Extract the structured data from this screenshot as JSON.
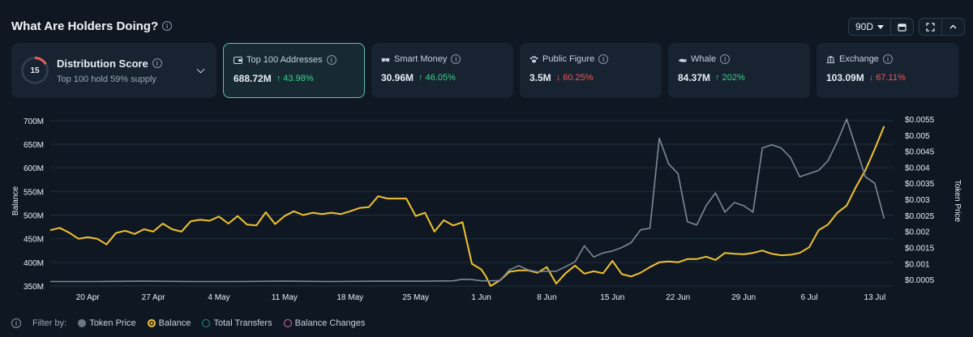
{
  "header": {
    "title": "What Are Holders Doing?",
    "period": "90D"
  },
  "distribution": {
    "score": "15",
    "title": "Distribution Score",
    "subtitle": "Top 100 hold 59% supply"
  },
  "stats": [
    {
      "label": "Top 100 Addresses",
      "icon": "wallet-icon",
      "value": "688.72M",
      "change": "↑ 43.98%",
      "direction": "up",
      "active": true
    },
    {
      "label": "Smart Money",
      "icon": "glasses-icon",
      "value": "30.96M",
      "change": "↑ 46.05%",
      "direction": "up",
      "active": false
    },
    {
      "label": "Public Figure",
      "icon": "paw-icon",
      "value": "3.5M",
      "change": "↓ 60.25%",
      "direction": "down",
      "active": false
    },
    {
      "label": "Whale",
      "icon": "whale-icon",
      "value": "84.37M",
      "change": "↑ 202%",
      "direction": "up",
      "active": false
    },
    {
      "label": "Exchange",
      "icon": "bank-icon",
      "value": "103.09M",
      "change": "↓ 67.11%",
      "direction": "down",
      "active": false
    }
  ],
  "legend": {
    "filter_label": "Filter by:",
    "items": [
      {
        "label": "Token Price",
        "color": "#6b7785",
        "style": "filled"
      },
      {
        "label": "Balance",
        "color": "#f2c230",
        "style": "ring"
      },
      {
        "label": "Total Transfers",
        "color": "#1f8f8a",
        "style": "ring"
      },
      {
        "label": "Balance Changes",
        "color": "#d86aa8",
        "style": "ring"
      }
    ]
  },
  "colors": {
    "balance": "#f2c230",
    "price": "#7d8998",
    "grid": "#1f2f3d",
    "accent": "#5dc2b0"
  },
  "chart_data": {
    "type": "line",
    "xlabel": "",
    "ylabel": "Balance",
    "y2label": "Token Price",
    "ylim": [
      350,
      710
    ],
    "y_ticks": [
      "350M",
      "400M",
      "450M",
      "500M",
      "550M",
      "600M",
      "650M",
      "700M"
    ],
    "y_tick_values": [
      350,
      400,
      450,
      500,
      550,
      600,
      650,
      700
    ],
    "y2lim": [
      0.0003,
      0.0056
    ],
    "y2_ticks": [
      "$0.0005",
      "$0.001",
      "$0.0015",
      "$0.002",
      "$0.0025",
      "$0.003",
      "$0.0035",
      "$0.004",
      "$0.0045",
      "$0.005",
      "$0.0055"
    ],
    "y2_tick_values": [
      0.0005,
      0.001,
      0.0015,
      0.002,
      0.0025,
      0.003,
      0.0035,
      0.004,
      0.0045,
      0.005,
      0.0055
    ],
    "x_ticks": [
      "20 Apr",
      "27 Apr",
      "4 May",
      "11 May",
      "18 May",
      "25 May",
      "1 Jun",
      "8 Jun",
      "15 Jun",
      "22 Jun",
      "29 Jun",
      "6 Jul",
      "13 Jul"
    ],
    "x_tick_days": [
      4,
      11,
      18,
      25,
      32,
      39,
      46,
      53,
      60,
      67,
      74,
      81,
      88
    ],
    "x_start": "16 Apr",
    "series": [
      {
        "name": "Balance",
        "axis": "left",
        "days": [
          0,
          1,
          2,
          3,
          4,
          5,
          6,
          7,
          8,
          9,
          10,
          11,
          12,
          13,
          14,
          15,
          16,
          17,
          18,
          19,
          20,
          21,
          22,
          23,
          24,
          25,
          26,
          27,
          28,
          29,
          30,
          31,
          32,
          33,
          34,
          35,
          36,
          37,
          38,
          39,
          40,
          41,
          42,
          43,
          44,
          45,
          46,
          46.5,
          47,
          48,
          49,
          50,
          51,
          52,
          53,
          54,
          55,
          56,
          57,
          58,
          59,
          60,
          61,
          62,
          63,
          64,
          65,
          66,
          67,
          68,
          69,
          70,
          71,
          72,
          73,
          74,
          75,
          76,
          77,
          78,
          79,
          80,
          81,
          82,
          83,
          84,
          85,
          86,
          87,
          88,
          89
        ],
        "values": [
          468,
          473,
          463,
          450,
          453,
          450,
          438,
          462,
          467,
          460,
          470,
          465,
          482,
          470,
          465,
          487,
          490,
          488,
          497,
          482,
          498,
          480,
          478,
          506,
          481,
          498,
          508,
          500,
          505,
          502,
          505,
          502,
          508,
          515,
          517,
          540,
          535,
          535,
          535,
          498,
          505,
          465,
          489,
          478,
          485,
          397,
          385,
          370,
          350,
          362,
          380,
          383,
          383,
          378,
          390,
          355,
          377,
          393,
          376,
          381,
          377,
          403,
          375,
          370,
          378,
          390,
          400,
          402,
          400,
          407,
          407,
          412,
          405,
          420,
          418,
          417,
          420,
          425,
          418,
          415,
          416,
          420,
          432,
          468,
          480,
          505,
          520,
          560,
          595,
          640,
          688
        ]
      },
      {
        "name": "Token Price",
        "axis": "right",
        "days": [
          0,
          5,
          10,
          15,
          20,
          25,
          30,
          35,
          40,
          43,
          44,
          45,
          46,
          47,
          48,
          49,
          50,
          51,
          52,
          53,
          54,
          55,
          56,
          57,
          58,
          59,
          60,
          61,
          62,
          63,
          64,
          65,
          66,
          67,
          68,
          69,
          70,
          71,
          72,
          73,
          74,
          75,
          76,
          77,
          78,
          79,
          80,
          81,
          82,
          83,
          84,
          85,
          86,
          87,
          88,
          89
        ],
        "values": [
          0.00044,
          0.00044,
          0.00045,
          0.00044,
          0.00044,
          0.00045,
          0.00044,
          0.00045,
          0.00045,
          0.00046,
          0.00051,
          0.0005,
          0.00046,
          0.00046,
          0.00047,
          0.0008,
          0.00093,
          0.0008,
          0.00074,
          0.00076,
          0.00076,
          0.0009,
          0.00105,
          0.00155,
          0.0012,
          0.00133,
          0.00139,
          0.0015,
          0.00165,
          0.00205,
          0.0021,
          0.0049,
          0.0041,
          0.0038,
          0.0023,
          0.0022,
          0.0028,
          0.0032,
          0.0026,
          0.0029,
          0.0028,
          0.0026,
          0.0046,
          0.0047,
          0.0046,
          0.0043,
          0.0037,
          0.0038,
          0.0039,
          0.0042,
          0.0048,
          0.0055,
          0.0046,
          0.0037,
          0.0035,
          0.0024
        ]
      }
    ]
  }
}
